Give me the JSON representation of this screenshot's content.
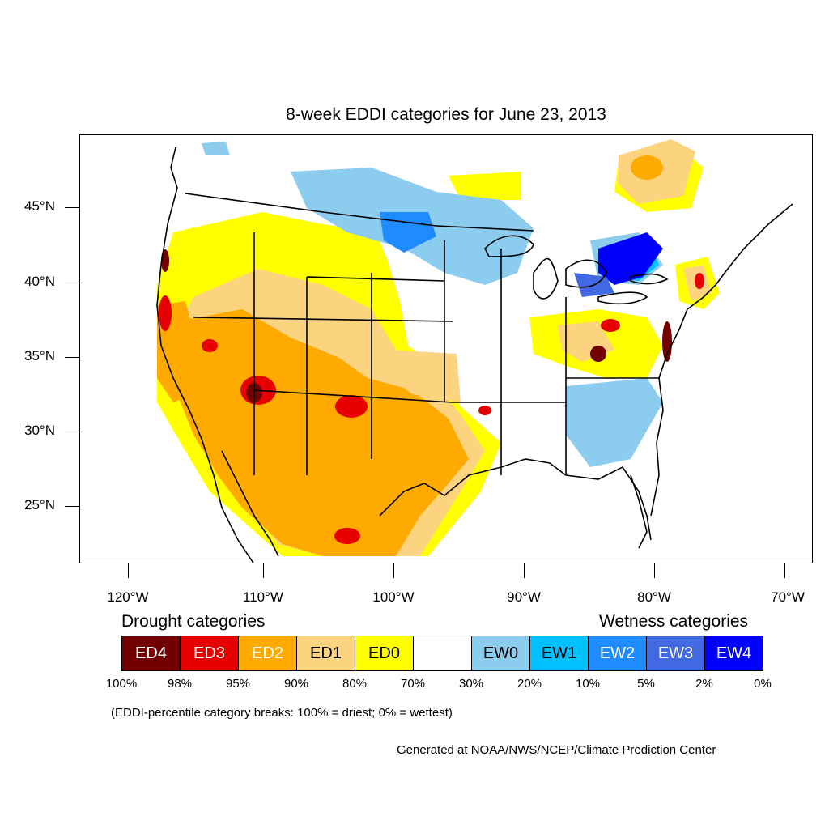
{
  "title": "8-week EDDI categories for June 23, 2013",
  "latitude_labels": [
    "45°N",
    "40°N",
    "35°N",
    "30°N",
    "25°N"
  ],
  "longitude_labels": [
    "120°W",
    "110°W",
    "100°W",
    "90°W",
    "80°W",
    "70°W"
  ],
  "legend": {
    "drought_heading": "Drought categories",
    "wetness_heading": "Wetness categories",
    "categories": [
      {
        "label": "ED4",
        "color": "#730000",
        "text_color": "#ffffff"
      },
      {
        "label": "ED3",
        "color": "#e60000",
        "text_color": "#ffffff"
      },
      {
        "label": "ED2",
        "color": "#ffaa00",
        "text_color": "#ffffff"
      },
      {
        "label": "ED1",
        "color": "#fcd37f",
        "text_color": "#000000"
      },
      {
        "label": "ED0",
        "color": "#ffff00",
        "text_color": "#000000"
      },
      {
        "label": "",
        "color": "#ffffff",
        "text_color": "#000000"
      },
      {
        "label": "EW0",
        "color": "#8ccdef",
        "text_color": "#000000"
      },
      {
        "label": "EW1",
        "color": "#00c0ff",
        "text_color": "#000000"
      },
      {
        "label": "EW2",
        "color": "#1e8cff",
        "text_color": "#ffffff"
      },
      {
        "label": "EW3",
        "color": "#4169e1",
        "text_color": "#ffffff"
      },
      {
        "label": "EW4",
        "color": "#0000ff",
        "text_color": "#ffffff"
      }
    ],
    "breaks": [
      "100%",
      "98%",
      "95%",
      "90%",
      "80%",
      "70%",
      "30%",
      "20%",
      "10%",
      "5%",
      "2%",
      "0%"
    ]
  },
  "note": "(EDDI-percentile category breaks: 100% = driest; 0% = wettest)",
  "credit": "Generated at NOAA/NWS/NCEP/Climate Prediction Center"
}
